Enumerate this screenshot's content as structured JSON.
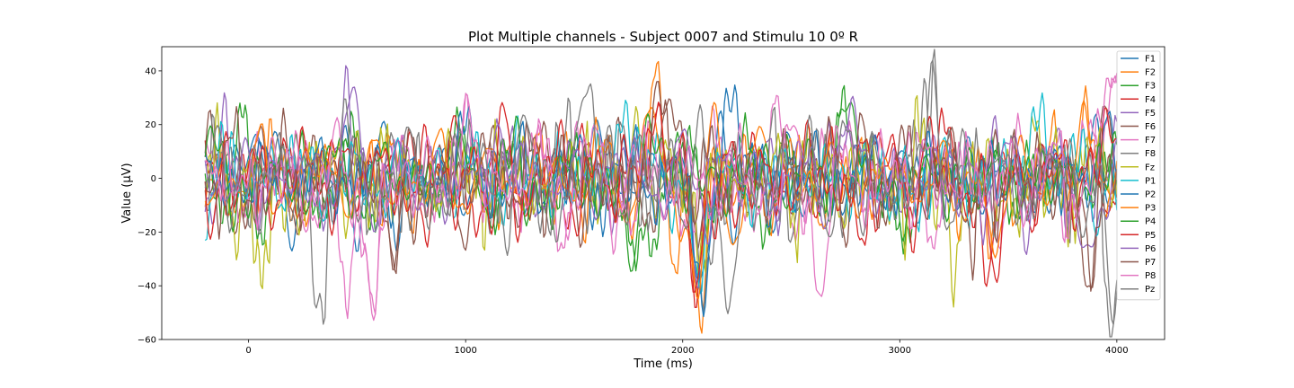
{
  "chart_data": {
    "type": "line",
    "title": "Plot Multiple channels - Subject 0007 and Stimulu 10 0º R",
    "xlabel": "Time (ms)",
    "ylabel": "Value (µV)",
    "xlim": [
      -400,
      4220
    ],
    "ylim": [
      -60,
      49
    ],
    "xticks": [
      0,
      1000,
      2000,
      3000,
      4000
    ],
    "yticks": [
      -60,
      -40,
      -20,
      0,
      20,
      40
    ],
    "xtick_labels": [
      "0",
      "1000",
      "2000",
      "3000",
      "4000"
    ],
    "ytick_labels": [
      "−60",
      "−40",
      "−20",
      "0",
      "20",
      "40"
    ],
    "grid": false,
    "legend_position": "top-right",
    "x_range": [
      -200,
      4000
    ],
    "series": [
      {
        "name": "F1",
        "color": "#1f77b4",
        "extremes": [
          [
            0,
            8
          ],
          [
            1600,
            22
          ],
          [
            2080,
            -38
          ],
          [
            3900,
            24
          ]
        ]
      },
      {
        "name": "F2",
        "color": "#ff7f0e",
        "extremes": [
          [
            1850,
            23
          ],
          [
            2070,
            -46
          ],
          [
            3850,
            29
          ],
          [
            3410,
            -30
          ]
        ]
      },
      {
        "name": "F3",
        "color": "#2ca02c",
        "extremes": [
          [
            2750,
            25
          ],
          [
            1780,
            -35
          ],
          [
            970,
            22
          ],
          [
            3000,
            -16
          ]
        ]
      },
      {
        "name": "F4",
        "color": "#d62728",
        "extremes": [
          [
            1880,
            25
          ],
          [
            2070,
            -40
          ],
          [
            3420,
            -28
          ],
          [
            3200,
            23
          ]
        ]
      },
      {
        "name": "F5",
        "color": "#9467bd",
        "extremes": [
          [
            460,
            29
          ],
          [
            2760,
            20
          ],
          [
            2080,
            -37
          ],
          [
            1150,
            18
          ]
        ]
      },
      {
        "name": "F6",
        "color": "#8c564b",
        "extremes": [
          [
            670,
            -34
          ],
          [
            3880,
            -42
          ],
          [
            1920,
            25
          ],
          [
            3950,
            26
          ]
        ]
      },
      {
        "name": "F7",
        "color": "#e377c2",
        "extremes": [
          [
            450,
            -48
          ],
          [
            580,
            -51
          ],
          [
            1010,
            31
          ],
          [
            3980,
            37
          ]
        ]
      },
      {
        "name": "F8",
        "color": "#7f7f7f",
        "extremes": [
          [
            3150,
            44
          ],
          [
            3980,
            -55
          ],
          [
            330,
            -43
          ],
          [
            2100,
            -43
          ]
        ]
      },
      {
        "name": "Fz",
        "color": "#bcbd22",
        "extremes": [
          [
            80,
            -23
          ],
          [
            2070,
            -37
          ],
          [
            1800,
            16
          ],
          [
            3260,
            -25
          ]
        ]
      },
      {
        "name": "P1",
        "color": "#17becf",
        "extremes": [
          [
            1740,
            28
          ],
          [
            2070,
            -38
          ],
          [
            3000,
            -8
          ],
          [
            3640,
            20
          ]
        ]
      },
      {
        "name": "P2",
        "color": "#1f77b4",
        "extremes": [
          [
            2220,
            25
          ],
          [
            2080,
            -38
          ],
          [
            3950,
            22
          ],
          [
            1000,
            18
          ]
        ]
      },
      {
        "name": "P3",
        "color": "#ff7f0e",
        "extremes": [
          [
            3850,
            29
          ],
          [
            2070,
            -45
          ],
          [
            1820,
            22
          ],
          [
            3420,
            -24
          ]
        ]
      },
      {
        "name": "P4",
        "color": "#2ca02c",
        "extremes": [
          [
            2750,
            25
          ],
          [
            1770,
            -35
          ],
          [
            1850,
            22
          ],
          [
            3000,
            -16
          ]
        ]
      },
      {
        "name": "P5",
        "color": "#d62728",
        "extremes": [
          [
            1880,
            25
          ],
          [
            3420,
            -30
          ],
          [
            3950,
            26
          ],
          [
            2060,
            -40
          ]
        ]
      },
      {
        "name": "P6",
        "color": "#9467bd",
        "extremes": [
          [
            460,
            29
          ],
          [
            1150,
            20
          ],
          [
            2760,
            19
          ],
          [
            3860,
            -25
          ]
        ]
      },
      {
        "name": "P7",
        "color": "#8c564b",
        "extremes": [
          [
            670,
            -34
          ],
          [
            3880,
            -42
          ],
          [
            1900,
            24
          ],
          [
            3340,
            -31
          ]
        ]
      },
      {
        "name": "P8",
        "color": "#e377c2",
        "extremes": [
          [
            580,
            -51
          ],
          [
            1010,
            31
          ],
          [
            3980,
            37
          ],
          [
            2640,
            -44
          ]
        ]
      },
      {
        "name": "Pz",
        "color": "#7f7f7f",
        "extremes": [
          [
            3150,
            44
          ],
          [
            3980,
            -55
          ],
          [
            1580,
            32
          ],
          [
            2220,
            -43
          ]
        ]
      }
    ]
  }
}
